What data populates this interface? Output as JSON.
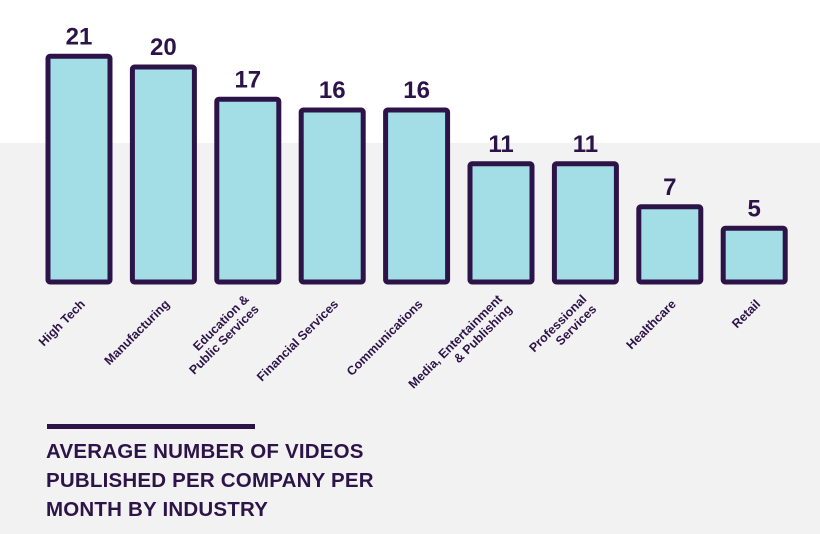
{
  "colors": {
    "bar_fill": "#a3dde6",
    "bar_stroke": "#2d1448",
    "text": "#2d1448",
    "band": "#f2f2f2"
  },
  "chart_data": {
    "type": "bar",
    "categories": [
      "High Tech",
      "Manufacturing",
      "Education & Public Services",
      "Financial Services",
      "Communications",
      "Media, Entertainment & Publishing",
      "Professional Services",
      "Healthcare",
      "Retail"
    ],
    "category_lines": [
      [
        "High Tech"
      ],
      [
        "Manufacturing"
      ],
      [
        "Education &",
        "Public Services"
      ],
      [
        "Financial Services"
      ],
      [
        "Communications"
      ],
      [
        "Media, Entertainment",
        "& Publishing"
      ],
      [
        "Professional",
        "Services"
      ],
      [
        "Healthcare"
      ],
      [
        "Retail"
      ]
    ],
    "values": [
      21,
      20,
      17,
      16,
      16,
      11,
      11,
      7,
      5
    ],
    "title": "AVERAGE NUMBER OF VIDEOS PUBLISHED PER COMPANY PER MONTH BY INDUSTRY",
    "title_lines": [
      "AVERAGE NUMBER OF VIDEOS",
      "PUBLISHED PER COMPANY PER",
      "MONTH BY INDUSTRY"
    ],
    "data_labels": true,
    "grid": false,
    "legend": "none"
  }
}
